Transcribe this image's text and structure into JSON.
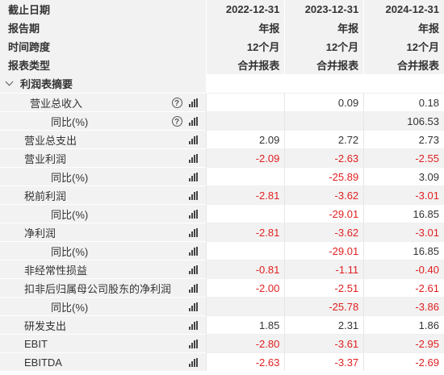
{
  "header": {
    "rows": [
      {
        "label": "截止日期",
        "values": [
          "2022-12-31",
          "2023-12-31",
          "2024-12-31"
        ]
      },
      {
        "label": "报告期",
        "values": [
          "年报",
          "年报",
          "年报"
        ]
      },
      {
        "label": "时间跨度",
        "values": [
          "12个月",
          "12个月",
          "12个月"
        ]
      },
      {
        "label": "报表类型",
        "values": [
          "合并报表",
          "合并报表",
          "合并报表"
        ]
      }
    ]
  },
  "section": {
    "label": "利润表摘要",
    "icon": "chevron-down-icon"
  },
  "rows": [
    {
      "label": "营业总收入",
      "indent": 1,
      "help": true,
      "values": [
        "",
        "0.09",
        "0.18"
      ]
    },
    {
      "label": "同比(%)",
      "indent": 2,
      "help": true,
      "values": [
        "",
        "",
        "106.53"
      ]
    },
    {
      "label": "营业总支出",
      "indent": 0,
      "help": false,
      "values": [
        "2.09",
        "2.72",
        "2.73"
      ]
    },
    {
      "label": "营业利润",
      "indent": 0,
      "help": false,
      "values": [
        "-2.09",
        "-2.63",
        "-2.55"
      ]
    },
    {
      "label": "同比(%)",
      "indent": 2,
      "help": false,
      "values": [
        "",
        "-25.89",
        "3.09"
      ]
    },
    {
      "label": "税前利润",
      "indent": 0,
      "help": false,
      "values": [
        "-2.81",
        "-3.62",
        "-3.01"
      ]
    },
    {
      "label": "同比(%)",
      "indent": 2,
      "help": false,
      "values": [
        "",
        "-29.01",
        "16.85"
      ]
    },
    {
      "label": "净利润",
      "indent": 0,
      "help": false,
      "values": [
        "-2.81",
        "-3.62",
        "-3.01"
      ]
    },
    {
      "label": "同比(%)",
      "indent": 2,
      "help": false,
      "values": [
        "",
        "-29.01",
        "16.85"
      ]
    },
    {
      "label": "非经常性损益",
      "indent": 0,
      "help": false,
      "values": [
        "-0.81",
        "-1.11",
        "-0.40"
      ]
    },
    {
      "label": "扣非后归属母公司股东的净利润",
      "indent": 0,
      "help": false,
      "values": [
        "-2.00",
        "-2.51",
        "-2.61"
      ]
    },
    {
      "label": "同比(%)",
      "indent": 2,
      "help": false,
      "values": [
        "",
        "-25.78",
        "-3.86"
      ]
    },
    {
      "label": "研发支出",
      "indent": 0,
      "help": false,
      "values": [
        "1.85",
        "2.31",
        "1.86"
      ]
    },
    {
      "label": "EBIT",
      "indent": 0,
      "help": false,
      "values": [
        "-2.80",
        "-3.61",
        "-2.95"
      ]
    },
    {
      "label": "EBITDA",
      "indent": 0,
      "help": false,
      "values": [
        "-2.63",
        "-3.37",
        "-2.69"
      ]
    }
  ],
  "icons": {
    "help": "question-circle-icon",
    "chart": "bar-chart-icon"
  },
  "colors": {
    "negative": "#e02020",
    "header_bg": "#f2f2f2",
    "text": "#333333"
  }
}
